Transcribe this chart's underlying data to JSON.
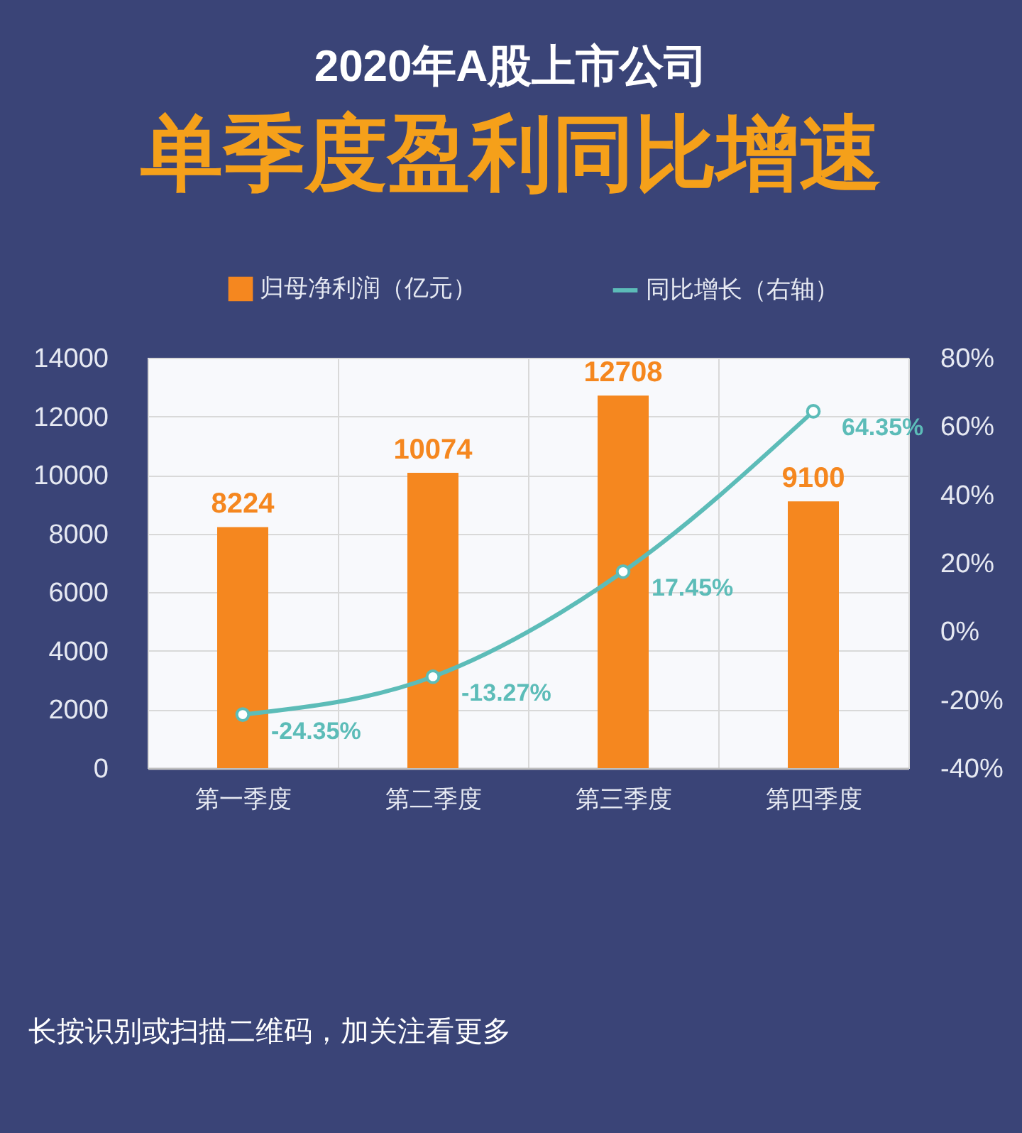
{
  "chart_data": {
    "type": "bar",
    "title": "2020年A股上市公司",
    "subtitle": "单季度盈利同比增速",
    "categories": [
      "第一季度",
      "第二季度",
      "第三季度",
      "第四季度"
    ],
    "series": [
      {
        "name": "归母净利润（亿元）",
        "color": "#f5871f",
        "values": [
          8224,
          10074,
          12708,
          9100
        ],
        "value_labels": [
          "8224",
          "10074",
          "12708",
          "9100"
        ]
      },
      {
        "name": "同比增长（右轴）",
        "type": "line",
        "axis": "y2",
        "color": "#5cbcb8",
        "values": [
          -24.35,
          -13.27,
          17.45,
          64.35
        ],
        "value_labels": [
          "-24.35%",
          "-13.27%",
          "17.45%",
          "64.35%"
        ]
      }
    ],
    "ylim": [
      0,
      14000
    ],
    "yticks": [
      0,
      2000,
      4000,
      6000,
      8000,
      10000,
      12000,
      14000
    ],
    "y2lim": [
      -40,
      80
    ],
    "y2ticks": [
      {
        "value": -40,
        "label": "-40%"
      },
      {
        "value": -20,
        "label": "-20%"
      },
      {
        "value": 0,
        "label": "0%"
      },
      {
        "value": 20,
        "label": "20%"
      },
      {
        "value": 40,
        "label": "40%"
      },
      {
        "value": 60,
        "label": "60%"
      },
      {
        "value": 80,
        "label": "80%"
      }
    ],
    "marker": "circle",
    "line_style": "solid",
    "grid": true,
    "legend": "top",
    "annotations": [
      "长按识别或扫描二维码，加关注看更多"
    ]
  }
}
